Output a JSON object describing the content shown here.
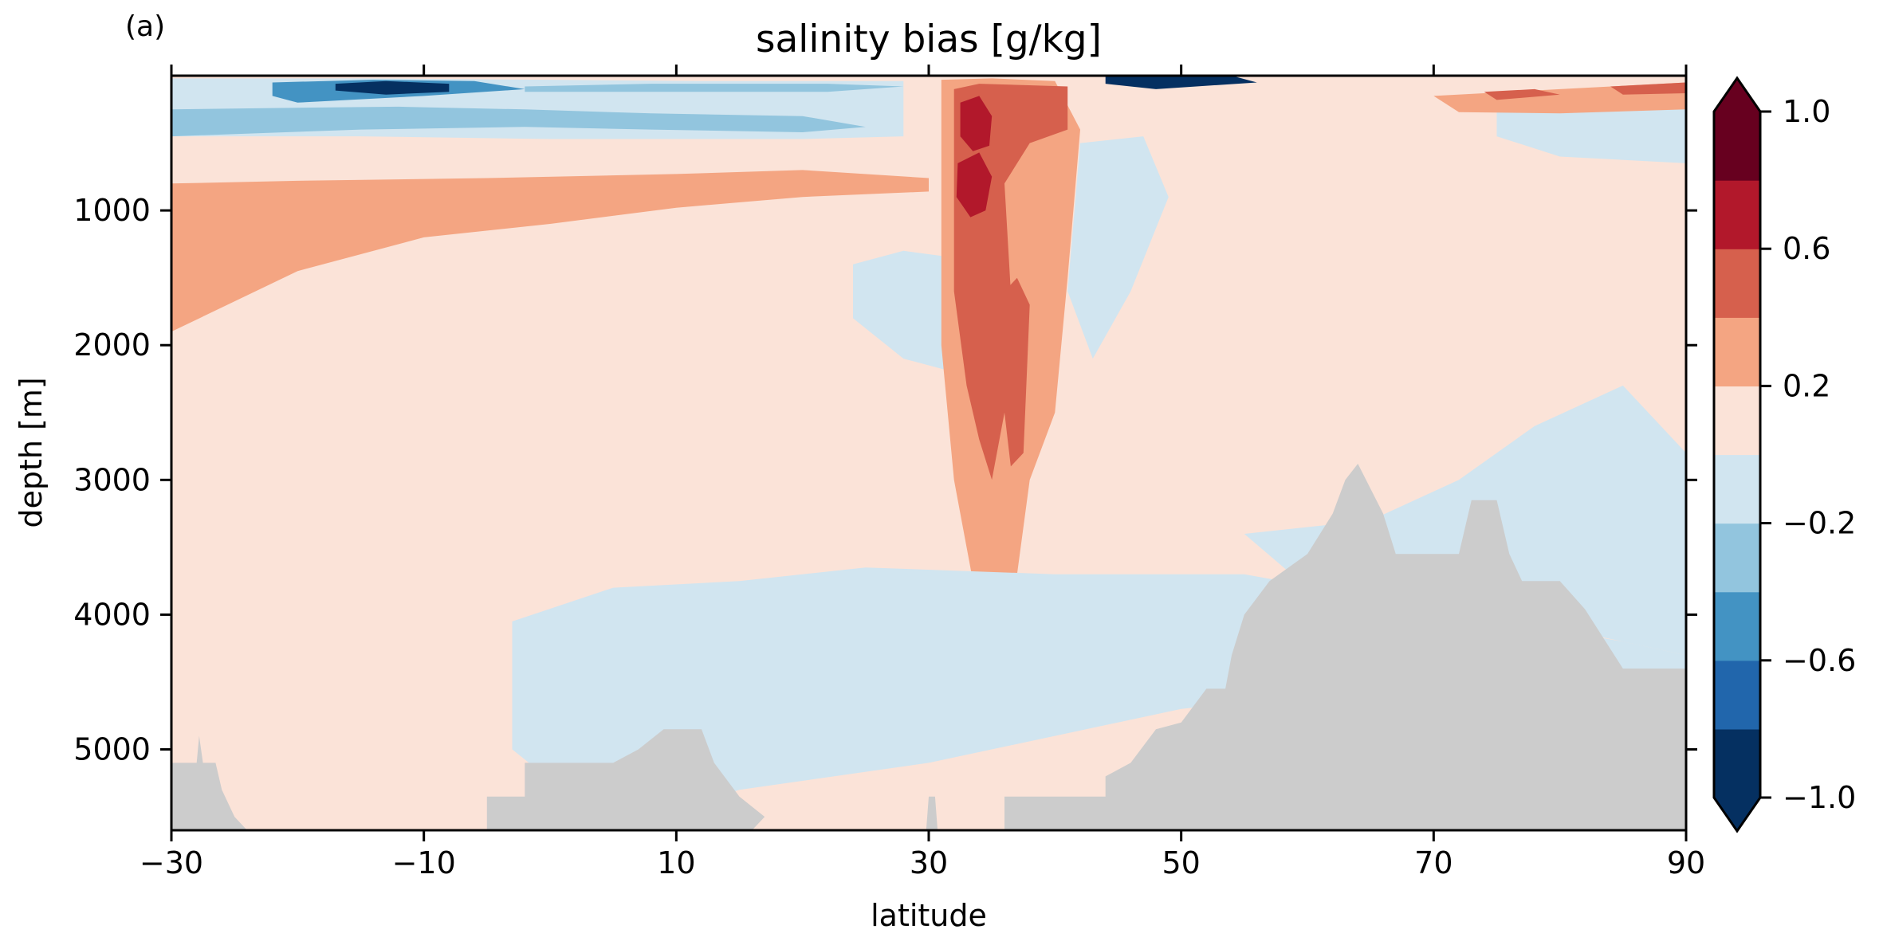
{
  "panel_label": "(a)",
  "chart_data": {
    "type": "filled-contour",
    "title": "salinity bias [g/kg]",
    "xlabel": "latitude",
    "ylabel": "depth [m]",
    "xlim": [
      -30,
      90
    ],
    "ylim": [
      5600,
      0
    ],
    "y_inverted": true,
    "grid": false,
    "x_ticks": [
      -30,
      -10,
      10,
      30,
      50,
      70,
      90
    ],
    "x_tick_labels": [
      "−30",
      "−10",
      "10",
      "30",
      "50",
      "70",
      "90"
    ],
    "y_ticks": [
      1000,
      2000,
      3000,
      4000,
      5000
    ],
    "y_tick_labels": [
      "1000",
      "2000",
      "3000",
      "4000",
      "5000"
    ],
    "colorbar": {
      "placement": "right",
      "extend": "both",
      "levels": [
        -1.0,
        -0.8,
        -0.6,
        -0.4,
        -0.2,
        0.0,
        0.2,
        0.4,
        0.6,
        0.8,
        1.0
      ],
      "colors": [
        "#053061",
        "#2166ac",
        "#4393c3",
        "#92c5de",
        "#d1e5f0",
        "#fbe3d8",
        "#f4a582",
        "#d6604d",
        "#b2182b",
        "#67001f"
      ],
      "under_color": "#053061",
      "over_color": "#67001f",
      "ticks": [
        -1.0,
        -0.6,
        -0.2,
        0.2,
        0.6,
        1.0
      ],
      "tick_labels": [
        "−1.0",
        "−0.6",
        "−0.2",
        "0.2",
        "0.6",
        "1.0"
      ]
    },
    "land_mask_color": "#cccccc",
    "background_level": 0.1,
    "bias_patches": [
      {
        "name": "upper-warm-layer",
        "value": 0.3,
        "poly": [
          [
            -30,
            800
          ],
          [
            -20,
            780
          ],
          [
            -5,
            760
          ],
          [
            10,
            730
          ],
          [
            20,
            700
          ],
          [
            30,
            760
          ],
          [
            30,
            860
          ],
          [
            20,
            900
          ],
          [
            10,
            980
          ],
          [
            0,
            1100
          ],
          [
            -10,
            1200
          ],
          [
            -20,
            1450
          ],
          [
            -30,
            1900
          ]
        ]
      },
      {
        "name": "near-surface-fresh",
        "value": -0.1,
        "poly": [
          [
            -30,
            20
          ],
          [
            -15,
            20
          ],
          [
            0,
            30
          ],
          [
            12,
            40
          ],
          [
            28,
            40
          ],
          [
            28,
            450
          ],
          [
            20,
            470
          ],
          [
            10,
            470
          ],
          [
            0,
            470
          ],
          [
            -15,
            450
          ],
          [
            -30,
            450
          ]
        ]
      },
      {
        "name": "near-surface-fresh-mid",
        "value": -0.3,
        "poly": [
          [
            -30,
            250
          ],
          [
            -22,
            240
          ],
          [
            -12,
            230
          ],
          [
            -2,
            250
          ],
          [
            8,
            280
          ],
          [
            20,
            300
          ],
          [
            25,
            380
          ],
          [
            20,
            420
          ],
          [
            8,
            400
          ],
          [
            -2,
            380
          ],
          [
            -15,
            400
          ],
          [
            -30,
            450
          ]
        ]
      },
      {
        "name": "near-surface-fresh-strong",
        "value": -0.5,
        "poly": [
          [
            -22,
            50
          ],
          [
            -14,
            30
          ],
          [
            -6,
            40
          ],
          [
            -2,
            100
          ],
          [
            -10,
            150
          ],
          [
            -20,
            200
          ],
          [
            -22,
            150
          ]
        ]
      },
      {
        "name": "near-surface-fresh-core",
        "value": -0.9,
        "poly": [
          [
            -17,
            60
          ],
          [
            -13,
            40
          ],
          [
            -8,
            60
          ],
          [
            -8,
            120
          ],
          [
            -13,
            140
          ],
          [
            -17,
            110
          ]
        ]
      },
      {
        "name": "subsurface-fresh-stripe",
        "value": -0.3,
        "poly": [
          [
            -2,
            80
          ],
          [
            8,
            60
          ],
          [
            22,
            60
          ],
          [
            28,
            80
          ],
          [
            22,
            120
          ],
          [
            8,
            120
          ],
          [
            -2,
            120
          ]
        ]
      },
      {
        "name": "north-upper-fresh",
        "value": -0.1,
        "poly": [
          [
            75,
            250
          ],
          [
            85,
            220
          ],
          [
            90,
            200
          ],
          [
            90,
            650
          ],
          [
            80,
            600
          ],
          [
            75,
            450
          ]
        ]
      },
      {
        "name": "arctic-surface-salty",
        "value": 0.3,
        "poly": [
          [
            70,
            150
          ],
          [
            80,
            100
          ],
          [
            90,
            50
          ],
          [
            90,
            250
          ],
          [
            80,
            280
          ],
          [
            72,
            270
          ]
        ]
      },
      {
        "name": "arctic-surface-salty-core",
        "value": 0.5,
        "poly": [
          [
            74,
            120
          ],
          [
            78,
            100
          ],
          [
            80,
            140
          ],
          [
            75,
            180
          ]
        ]
      },
      {
        "name": "arctic-surface-salty-core-2",
        "value": 0.5,
        "poly": [
          [
            84,
            80
          ],
          [
            90,
            50
          ],
          [
            90,
            130
          ],
          [
            85,
            140
          ]
        ]
      },
      {
        "name": "surface-fresh-50n",
        "value": -0.9,
        "poly": [
          [
            44,
            0
          ],
          [
            54,
            0
          ],
          [
            56,
            50
          ],
          [
            48,
            100
          ],
          [
            44,
            60
          ]
        ]
      },
      {
        "name": "ridge-fresh-33",
        "value": -0.1,
        "poly": [
          [
            24,
            1400
          ],
          [
            28,
            1300
          ],
          [
            32,
            1350
          ],
          [
            32,
            2200
          ],
          [
            28,
            2100
          ],
          [
            24,
            1800
          ]
        ]
      },
      {
        "name": "ridge-fresh-45",
        "value": -0.1,
        "poly": [
          [
            42,
            500
          ],
          [
            47,
            450
          ],
          [
            49,
            900
          ],
          [
            46,
            1600
          ],
          [
            43,
            2100
          ],
          [
            41,
            1600
          ]
        ]
      },
      {
        "name": "med-outflow-shell",
        "value": 0.3,
        "poly": [
          [
            31,
            30
          ],
          [
            35,
            20
          ],
          [
            40,
            40
          ],
          [
            42,
            400
          ],
          [
            41,
            1500
          ],
          [
            40,
            2500
          ],
          [
            38,
            3000
          ],
          [
            37,
            3700
          ],
          [
            36,
            4100
          ],
          [
            34,
            4000
          ],
          [
            33,
            3500
          ],
          [
            32,
            3000
          ],
          [
            31,
            2000
          ],
          [
            31,
            1000
          ]
        ]
      },
      {
        "name": "med-outflow-body",
        "value": 0.5,
        "poly": [
          [
            32,
            100
          ],
          [
            34,
            60
          ],
          [
            41,
            80
          ],
          [
            41,
            400
          ],
          [
            38,
            500
          ],
          [
            36,
            800
          ],
          [
            36.5,
            1600
          ],
          [
            36,
            2500
          ],
          [
            35,
            3000
          ],
          [
            34,
            2700
          ],
          [
            33,
            2300
          ],
          [
            32,
            1600
          ],
          [
            32,
            700
          ]
        ]
      },
      {
        "name": "med-outflow-lower-branch",
        "value": 0.5,
        "poly": [
          [
            36,
            1600
          ],
          [
            37,
            1500
          ],
          [
            38,
            1700
          ],
          [
            37.5,
            2800
          ],
          [
            36.5,
            2900
          ],
          [
            36,
            2500
          ]
        ]
      },
      {
        "name": "med-outflow-core-upper",
        "value": 0.7,
        "poly": [
          [
            32.5,
            200
          ],
          [
            34,
            150
          ],
          [
            35,
            300
          ],
          [
            34.8,
            520
          ],
          [
            33.5,
            560
          ],
          [
            32.5,
            450
          ]
        ]
      },
      {
        "name": "med-outflow-core-lower",
        "value": 0.7,
        "poly": [
          [
            32.3,
            650
          ],
          [
            34,
            570
          ],
          [
            35,
            750
          ],
          [
            34.5,
            1000
          ],
          [
            33.3,
            1050
          ],
          [
            32.2,
            900
          ]
        ]
      },
      {
        "name": "lower-fresh-tongue",
        "value": -0.1,
        "poly": [
          [
            -3,
            4050
          ],
          [
            5,
            3800
          ],
          [
            15,
            3750
          ],
          [
            25,
            3650
          ],
          [
            40,
            3700
          ],
          [
            55,
            3700
          ],
          [
            70,
            3950
          ],
          [
            85,
            4200
          ],
          [
            90,
            4300
          ],
          [
            90,
            4500
          ],
          [
            70,
            4500
          ],
          [
            50,
            4700
          ],
          [
            30,
            5100
          ],
          [
            15,
            5300
          ],
          [
            5,
            5600
          ],
          [
            -3,
            5000
          ]
        ]
      },
      {
        "name": "deep-north-fresh",
        "value": -0.1,
        "poly": [
          [
            55,
            3400
          ],
          [
            65,
            3300
          ],
          [
            72,
            3000
          ],
          [
            78,
            2600
          ],
          [
            85,
            2300
          ],
          [
            90,
            2800
          ],
          [
            90,
            4300
          ],
          [
            75,
            4000
          ],
          [
            60,
            3800
          ]
        ]
      }
    ],
    "land_mask": [
      [
        -30,
        5100
      ],
      [
        -28,
        5100
      ],
      [
        -27.8,
        4900
      ],
      [
        -27.5,
        5100
      ],
      [
        -26.5,
        5100
      ],
      [
        -26,
        5300
      ],
      [
        -25,
        5500
      ],
      [
        -24,
        5600
      ],
      [
        -30,
        5600
      ]
    ],
    "land_mask_2": [
      [
        -5,
        5600
      ],
      [
        -5,
        5350
      ],
      [
        -2,
        5350
      ],
      [
        -2,
        5100
      ],
      [
        5,
        5100
      ],
      [
        7,
        5000
      ],
      [
        9,
        4850
      ],
      [
        12,
        4850
      ],
      [
        13,
        5100
      ],
      [
        15,
        5350
      ],
      [
        17,
        5500
      ],
      [
        16,
        5600
      ]
    ],
    "land_mask_3": [
      [
        29.8,
        5600
      ],
      [
        30,
        5350
      ],
      [
        30.5,
        5350
      ],
      [
        30.7,
        5600
      ]
    ],
    "land_mask_4": [
      [
        36,
        5600
      ],
      [
        36,
        5350
      ],
      [
        44,
        5350
      ],
      [
        44,
        5200
      ],
      [
        46,
        5100
      ],
      [
        48,
        4850
      ],
      [
        50,
        4800
      ],
      [
        52,
        4550
      ],
      [
        53.5,
        4550
      ],
      [
        54,
        4300
      ],
      [
        55,
        4000
      ],
      [
        57,
        3750
      ],
      [
        60,
        3550
      ],
      [
        62,
        3250
      ],
      [
        63,
        3000
      ],
      [
        64,
        2880
      ],
      [
        66,
        3250
      ],
      [
        67,
        3550
      ],
      [
        72,
        3550
      ],
      [
        73,
        3150
      ],
      [
        75,
        3150
      ],
      [
        76,
        3550
      ],
      [
        77,
        3750
      ],
      [
        80,
        3750
      ],
      [
        82,
        3960
      ],
      [
        85,
        4400
      ],
      [
        90,
        4400
      ],
      [
        90,
        5600
      ]
    ]
  }
}
